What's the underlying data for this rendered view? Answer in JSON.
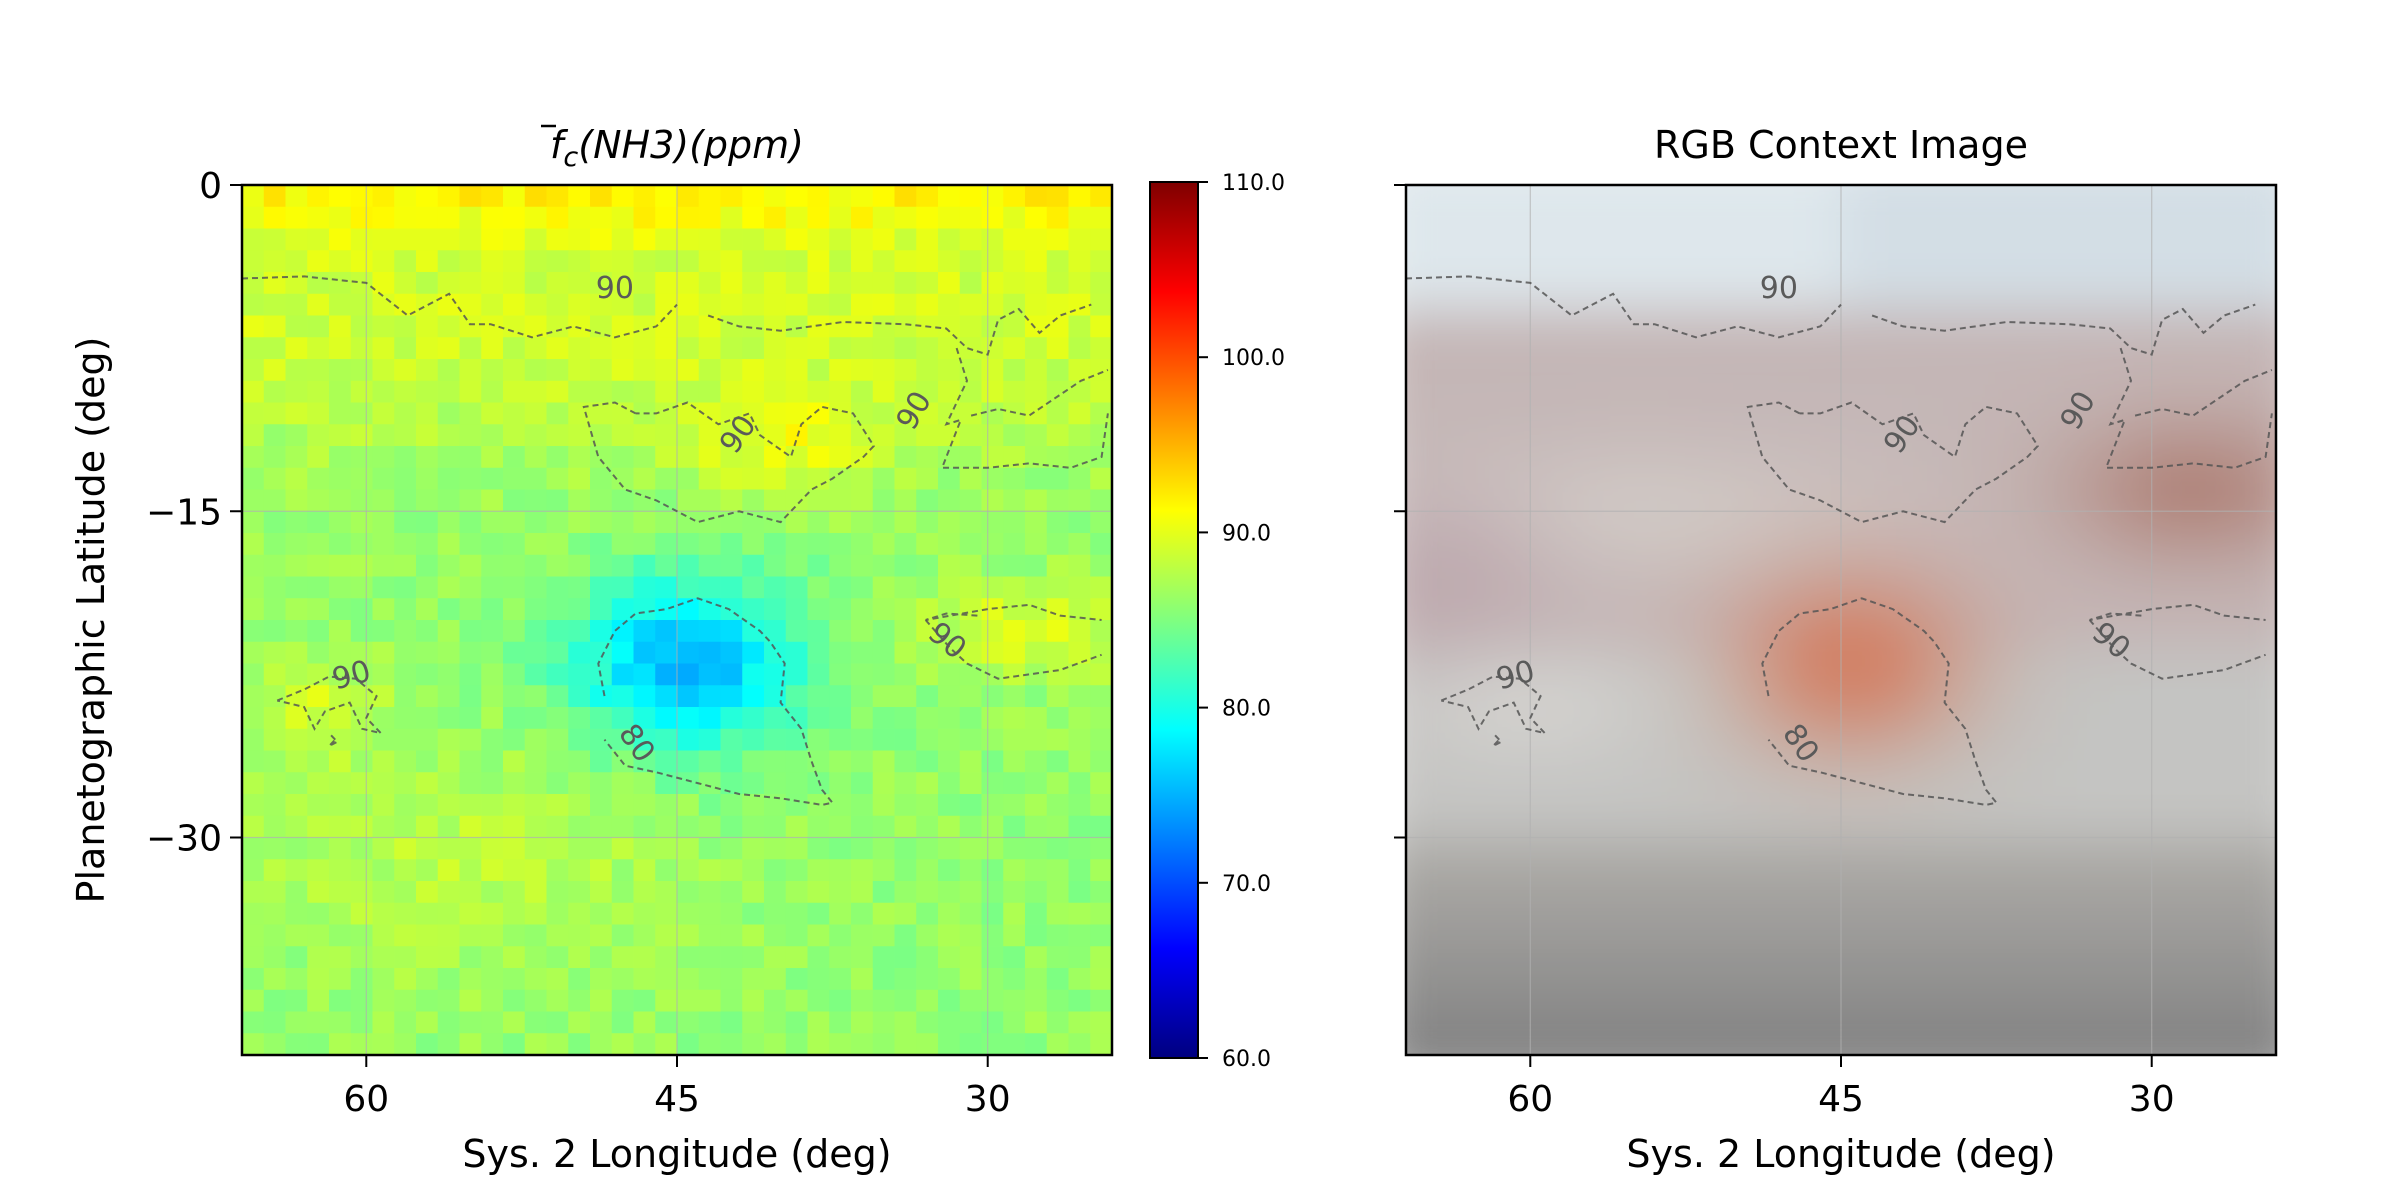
{
  "chart_data": [
    {
      "type": "heatmap",
      "title": "f̄c(NH3)(ppm)",
      "xlabel": "Sys. 2 Longitude (deg)",
      "ylabel": "Planetographic Latitude (deg)",
      "xlim": [
        66,
        24
      ],
      "ylim": [
        -40,
        0
      ],
      "xticks": [
        "60",
        "45",
        "30"
      ],
      "yticks": [
        "0",
        "−15",
        "−30"
      ],
      "grid": true,
      "colormap": "jet",
      "colorbar": {
        "range": [
          60,
          110
        ],
        "ticks": [
          "110.0",
          "100.0",
          "90.0",
          "80.0",
          "70.0",
          "60.0"
        ]
      },
      "contours": {
        "levels": [
          80,
          90
        ],
        "labels": [
          "90",
          "90",
          "90",
          "90",
          "90",
          "90",
          "80"
        ],
        "style": "dashed",
        "color": "#555555"
      },
      "field_description": {
        "background": 86,
        "top_edge": 96,
        "features": [
          {
            "name": "low NH3 region",
            "lon": 44.5,
            "lat": -22,
            "min": 76
          },
          {
            "name": "high NH3 patch",
            "lon": 40,
            "lat": -12,
            "max": 91
          },
          {
            "name": "high NH3 patch",
            "lon": 28,
            "lat": -20.5,
            "max": 91
          },
          {
            "name": "high NH3 patch",
            "lon": 62,
            "lat": -24,
            "max": 90
          }
        ]
      }
    },
    {
      "type": "heatmap",
      "title": "RGB Context Image",
      "xlabel": "Sys. 2 Longitude (deg)",
      "xlim": [
        66,
        24
      ],
      "ylim": [
        -40,
        0
      ],
      "xticks": [
        "60",
        "45",
        "30"
      ],
      "grid": true,
      "contours": {
        "levels": [
          80,
          90
        ],
        "labels": [
          "90",
          "90",
          "90",
          "90",
          "90",
          "90",
          "80"
        ],
        "style": "dashed",
        "color": "#555555"
      }
    }
  ]
}
